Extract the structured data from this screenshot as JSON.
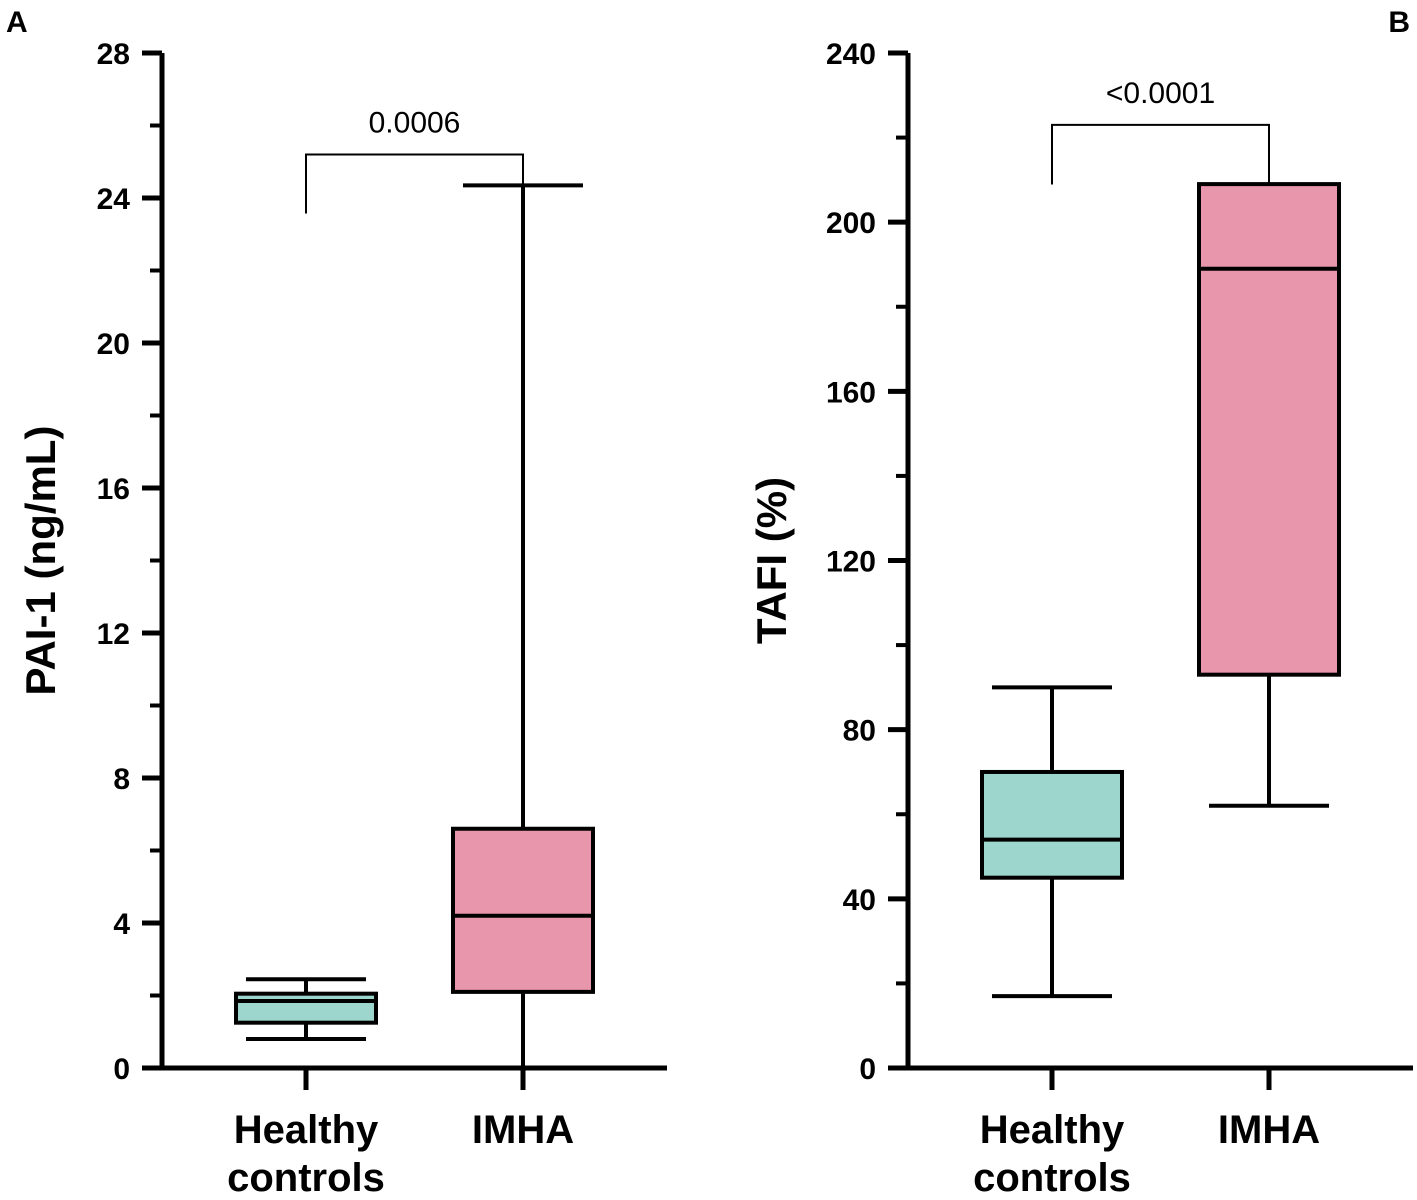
{
  "figure": {
    "background": "#ffffff"
  },
  "chart_data": [
    {
      "panel": "A",
      "type": "box",
      "ylabel": "PAI-1 (ng/mL)",
      "ylim": [
        0,
        28
      ],
      "yticks": [
        0,
        4,
        8,
        12,
        16,
        20,
        24,
        28
      ],
      "minor_step": 2,
      "categories": [
        [
          "Healthy",
          "controls"
        ],
        [
          "IMHA"
        ]
      ],
      "boxes": [
        {
          "group": "Healthy controls",
          "min": 0.8,
          "q1": 1.25,
          "median": 1.85,
          "q3": 2.05,
          "max": 2.45,
          "color": "#9dd6cd"
        },
        {
          "group": "IMHA",
          "min": 0.0,
          "q1": 2.1,
          "median": 4.2,
          "q3": 6.6,
          "max": 24.35,
          "color": "#e796ac"
        }
      ],
      "comparison": {
        "label": "0.0006",
        "y": 25.2,
        "drop_to": 24.4
      }
    },
    {
      "panel": "B",
      "type": "box",
      "ylabel": "TAFI (%)",
      "ylim": [
        0,
        240
      ],
      "yticks": [
        0,
        40,
        80,
        120,
        160,
        200,
        240
      ],
      "minor_step": 20,
      "categories": [
        [
          "Healthy",
          "controls"
        ],
        [
          "IMHA"
        ]
      ],
      "boxes": [
        {
          "group": "Healthy controls",
          "min": 17,
          "q1": 45,
          "median": 54,
          "q3": 70,
          "max": 90,
          "color": "#9dd6cd"
        },
        {
          "group": "IMHA",
          "min": 62,
          "q1": 93,
          "median": 189,
          "q3": 209,
          "max": 209,
          "color": "#e796ac"
        }
      ],
      "comparison": {
        "label": "<0.0001",
        "y": 223,
        "drop_to": 216
      }
    }
  ]
}
